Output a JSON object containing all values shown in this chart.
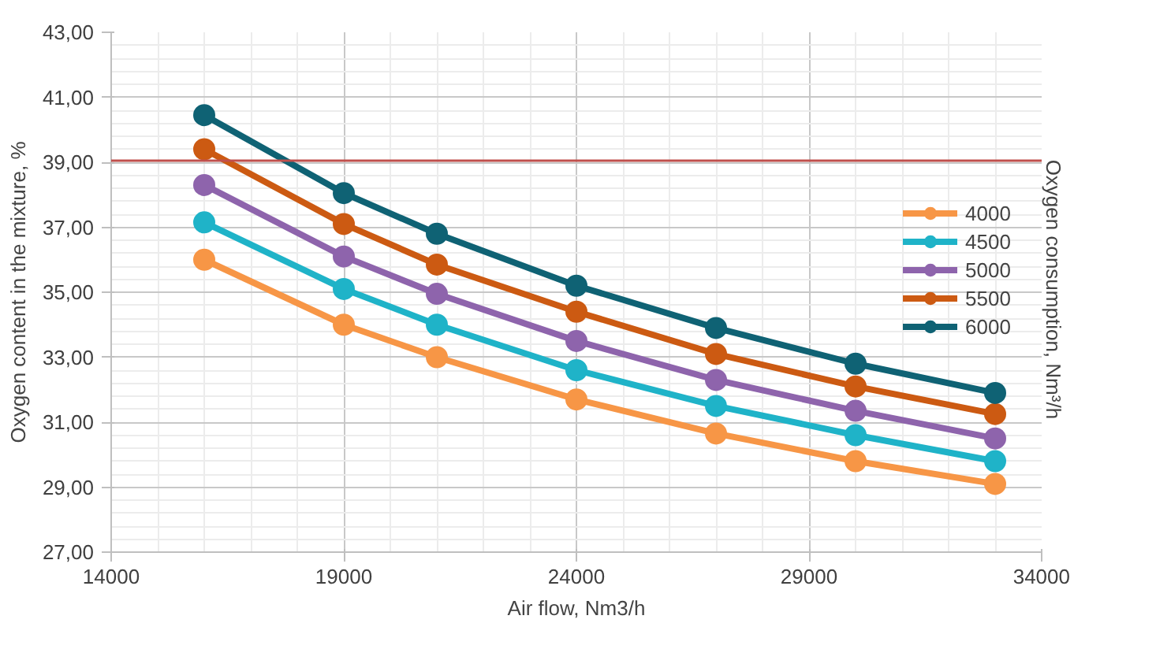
{
  "chart_data": {
    "type": "line",
    "xlabel": "Air flow, Nm3/h",
    "ylabel": "Oxygen content in the mixture, %",
    "legend_title": "Oxygen consumption,  Nm³/h",
    "x": [
      16000,
      19000,
      21000,
      24000,
      27000,
      30000,
      33000
    ],
    "series": [
      {
        "name": "4000",
        "color": "#f79646",
        "values": [
          36.0,
          34.0,
          33.0,
          31.7,
          30.65,
          29.8,
          29.1
        ]
      },
      {
        "name": "4500",
        "color": "#1fb3c8",
        "values": [
          37.15,
          35.1,
          34.0,
          32.6,
          31.5,
          30.6,
          29.8
        ]
      },
      {
        "name": "5000",
        "color": "#8e64ac",
        "values": [
          38.3,
          36.1,
          34.95,
          33.5,
          32.3,
          31.35,
          30.5
        ]
      },
      {
        "name": "5500",
        "color": "#cc5a12",
        "values": [
          39.4,
          37.1,
          35.85,
          34.4,
          33.1,
          32.1,
          31.25
        ]
      },
      {
        "name": "6000",
        "color": "#0f6274",
        "values": [
          40.45,
          38.05,
          36.8,
          35.2,
          33.9,
          32.8,
          31.9
        ]
      }
    ],
    "xlim": [
      14000,
      34000
    ],
    "xticks": [
      14000,
      19000,
      24000,
      29000,
      34000
    ],
    "ylim": [
      27,
      43
    ],
    "yticks": [
      {
        "value": 27,
        "label": "27,00"
      },
      {
        "value": 29,
        "label": "29,00"
      },
      {
        "value": 31,
        "label": "31,00"
      },
      {
        "value": 33,
        "label": "33,00"
      },
      {
        "value": 35,
        "label": "35,00"
      },
      {
        "value": 37,
        "label": "37,00"
      },
      {
        "value": 39,
        "label": "39,00"
      },
      {
        "value": 41,
        "label": "41,00"
      },
      {
        "value": 43,
        "label": "43,00"
      }
    ],
    "ref_lines": [
      {
        "axis": "y",
        "value": 39.05,
        "color": "#c0504d"
      }
    ],
    "grid": true,
    "legend": "right",
    "marker": "circle",
    "line_style": "solid"
  }
}
